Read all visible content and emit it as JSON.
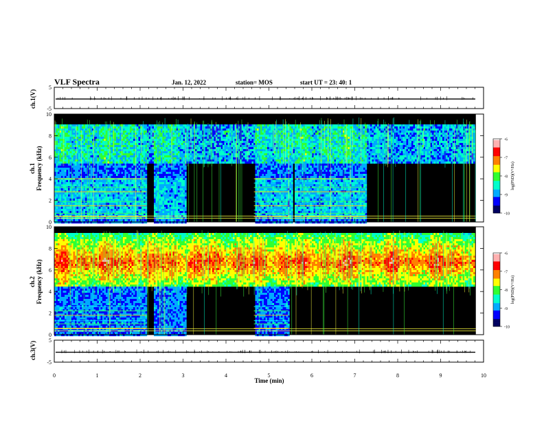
{
  "header": {
    "title": "VLF Spectra",
    "date": "Jan. 12, 2022",
    "station": "station= MOS",
    "start_ut": "start UT =  23: 40: 1"
  },
  "colors": {
    "palette": [
      "#000060",
      "#0000ff",
      "#00aaff",
      "#00ffcc",
      "#30ff30",
      "#ffff00",
      "#ff8000",
      "#ff0000",
      "#ffb0b0",
      "#ffffff"
    ],
    "background": "#000000",
    "trace": "#000000"
  },
  "chart_data": [
    {
      "type": "line",
      "name": "ch1-waveform",
      "ylabel": "ch.1(V)",
      "ylim": [
        -5,
        5
      ],
      "y_ticks": [
        "5",
        "-5"
      ],
      "baseline_value": -0.5
    },
    {
      "type": "heatmap",
      "name": "ch1-spectrogram",
      "ylabel": "ch.1\nFrequency (kHz)",
      "ylabel_line1": "ch.1",
      "ylabel_line2": "Frequency (kHz)",
      "xlim": [
        0,
        10
      ],
      "ylim": [
        0,
        10
      ],
      "y_ticks": [
        "0",
        "2",
        "4",
        "6",
        "8",
        "10"
      ],
      "colorbar": {
        "label": "log(PSD)(V²/Hz)",
        "range": [
          -10,
          -6
        ],
        "ticks": [
          "-6",
          "-7",
          "-8",
          "-9",
          "-10"
        ]
      },
      "data_end_min": 9.82,
      "features": {
        "high_band_khz": [
          5.5,
          9.2
        ],
        "quiet_gaps_min": [
          [
            2.15,
            2.3
          ],
          [
            3.05,
            4.65
          ],
          [
            5.55,
            5.6
          ],
          [
            7.25,
            9.82
          ]
        ],
        "line_bursts_min": [
          [
            0.0,
            2.15
          ],
          [
            4.65,
            5.45
          ],
          [
            5.6,
            7.25
          ]
        ],
        "line_freqs_khz": [
          0.5,
          0.8,
          1.1,
          1.5,
          1.9,
          2.3,
          2.8,
          3.2,
          3.6,
          4.0
        ]
      }
    },
    {
      "type": "heatmap",
      "name": "ch2-spectrogram",
      "ylabel_line1": "ch.2",
      "ylabel_line2": "Frequency (kHz)",
      "xlim": [
        0,
        10
      ],
      "ylim": [
        0,
        10
      ],
      "y_ticks": [
        "0",
        "2",
        "4",
        "6",
        "8",
        "10"
      ],
      "colorbar": {
        "label": "log(PSD)(V²/Hz)",
        "range": [
          -10,
          -6
        ],
        "ticks": [
          "-6",
          "-7",
          "-8",
          "-9",
          "-10"
        ]
      },
      "data_end_min": 9.82,
      "features": {
        "strong_band_khz": [
          4.5,
          9.5
        ],
        "peak_khz": 6.8,
        "quiet_gaps_min": [
          [
            2.15,
            2.3
          ],
          [
            3.05,
            4.65
          ],
          [
            5.45,
            9.82
          ]
        ],
        "line_bursts_min": [
          [
            0.0,
            2.15
          ],
          [
            4.65,
            5.45
          ]
        ],
        "line_freqs_khz": [
          0.6,
          1.0,
          1.3,
          1.8,
          2.2,
          2.6
        ]
      }
    },
    {
      "type": "line",
      "name": "ch3-waveform",
      "ylabel": "ch.3(V)",
      "ylim": [
        -5,
        5
      ],
      "y_ticks": [
        "5",
        "-5"
      ],
      "baseline_value": -0.5
    }
  ],
  "xaxis": {
    "label": "Time (min)",
    "range": [
      0,
      10
    ],
    "ticks": [
      "0",
      "1",
      "2",
      "3",
      "4",
      "5",
      "6",
      "7",
      "8",
      "9",
      "10"
    ]
  }
}
